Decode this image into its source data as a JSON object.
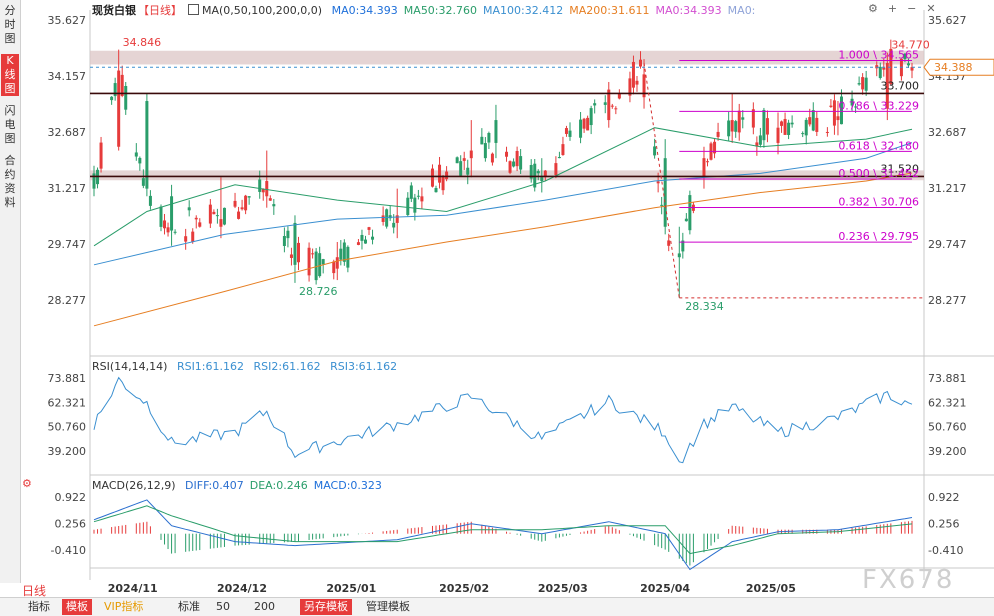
{
  "sidebar": {
    "tabs": [
      {
        "label": "分时图",
        "active": false
      },
      {
        "label": "K线图",
        "active": true
      },
      {
        "label": "闪电图",
        "active": false
      },
      {
        "label": "合约资料",
        "active": false
      }
    ]
  },
  "header": {
    "instrument": "现货白银",
    "period_tag": "【日线】",
    "ma_label": "MA(0,50,100,200,0,0)",
    "ma_values": [
      {
        "text": "MA0:34.393",
        "color": "#1e6fd9"
      },
      {
        "text": "MA50:32.760",
        "color": "#2a9d6a"
      },
      {
        "text": "MA100:32.412",
        "color": "#3a8fd0"
      },
      {
        "text": "MA200:31.611",
        "color": "#e67e22"
      },
      {
        "text": "MA0:34.393",
        "color": "#d24fd0"
      },
      {
        "text": "MA0:",
        "color": "#8fa3d8"
      }
    ],
    "icons": [
      "gear-icon",
      "plus-icon",
      "minus-icon",
      "close-icon"
    ],
    "icon_glyphs": [
      "⚙",
      "+",
      "−",
      "✕"
    ]
  },
  "price_axis": {
    "ticks": [
      "35.627",
      "34.157",
      "32.687",
      "31.217",
      "29.747",
      "28.277"
    ],
    "current_price": "34.388"
  },
  "rsi": {
    "label": "RSI(14,14,14)",
    "values": [
      "RSI1:61.162",
      "RSI2:61.162",
      "RSI3:61.162"
    ],
    "ticks": [
      "73.881",
      "62.321",
      "50.760",
      "39.200"
    ]
  },
  "macd": {
    "label": "MACD(26,12,9)",
    "values": [
      {
        "text": "DIFF:0.407",
        "color": "#2b6fcf"
      },
      {
        "text": "DEA:0.246",
        "color": "#2a9d6a"
      },
      {
        "text": "MACD:0.323",
        "color": "#1e6fd9"
      }
    ],
    "ticks": [
      "0.922",
      "0.256",
      "-0.410"
    ]
  },
  "date_labels": [
    "2024/11",
    "2024/12",
    "2025/01",
    "2025/02",
    "2025/03",
    "2025/04",
    "2025/05"
  ],
  "annotations": {
    "high_left": "34.846",
    "low_left": "28.726",
    "high_right": "34.770",
    "low_right": "28.334",
    "resistance": "33.700",
    "support": "31.520"
  },
  "fibonacci": [
    {
      "text": "1.000 \\ 34.565",
      "price": 34.565
    },
    {
      "text": "0.786 \\ 33.229",
      "price": 33.229
    },
    {
      "text": "0.618 \\ 32.180",
      "price": 32.18
    },
    {
      "text": "0.500 \\ 31.452",
      "price": 31.452
    },
    {
      "text": "0.382 \\ 30.706",
      "price": 30.706
    },
    {
      "text": "0.236 \\ 29.795",
      "price": 29.795
    }
  ],
  "bottom_bar": {
    "period": "日线",
    "buttons": [
      {
        "label": "指标",
        "style": "normal"
      },
      {
        "label": "模板",
        "style": "red"
      },
      {
        "label": "VIP指标",
        "style": "vip"
      },
      {
        "label": "标准",
        "style": "normal"
      },
      {
        "label": "50",
        "style": "normal"
      },
      {
        "label": "200",
        "style": "normal"
      },
      {
        "label": "另存模板",
        "style": "red"
      },
      {
        "label": "管理模板",
        "style": "normal"
      }
    ]
  },
  "watermark": "FX678",
  "colors": {
    "up": "#e63b3b",
    "down": "#2a9d6a",
    "ma0": "#1e6fd9",
    "ma50": "#2a9d6a",
    "ma100": "#3a8fd0",
    "ma200": "#e67e22",
    "fib": "#cc00cc"
  },
  "chart_data": {
    "type": "candlestick",
    "title": "现货白银 日线",
    "ylim": [
      28.277,
      35.627
    ],
    "x_range": [
      "2024-10-23",
      "2025-06-12"
    ],
    "month_ticks": [
      "2024-11-01",
      "2024-12-02",
      "2025-01-02",
      "2025-02-03",
      "2025-03-03",
      "2025-04-01",
      "2025-05-01"
    ],
    "ohlc_keypoints": [
      [
        "2024-10-23",
        31.6,
        31.8,
        31.0,
        31.2
      ],
      [
        "2024-10-30",
        32.3,
        34.85,
        32.2,
        34.3
      ],
      [
        "2024-11-07",
        33.5,
        33.7,
        31.0,
        31.2
      ],
      [
        "2024-11-14",
        31.0,
        31.3,
        29.7,
        30.1
      ],
      [
        "2024-11-28",
        30.2,
        31.5,
        29.9,
        30.4
      ],
      [
        "2024-12-11",
        31.0,
        32.2,
        30.7,
        31.4
      ],
      [
        "2024-12-19",
        30.3,
        30.5,
        28.726,
        29.2
      ],
      [
        "2024-12-31",
        29.1,
        29.8,
        28.8,
        29.4
      ],
      [
        "2025-01-17",
        30.3,
        31.2,
        29.9,
        30.5
      ],
      [
        "2025-02-07",
        32.0,
        33.0,
        31.5,
        32.2
      ],
      [
        "2025-02-14",
        33.0,
        33.4,
        32.0,
        32.4
      ],
      [
        "2025-02-27",
        31.5,
        32.0,
        31.1,
        31.4
      ],
      [
        "2025-03-18",
        33.0,
        34.0,
        32.8,
        33.8
      ],
      [
        "2025-03-28",
        33.6,
        34.6,
        33.3,
        34.2
      ],
      [
        "2025-04-03",
        32.0,
        32.5,
        30.0,
        30.2
      ],
      [
        "2025-04-07",
        29.5,
        30.2,
        28.334,
        29.4
      ],
      [
        "2025-04-14",
        31.5,
        32.3,
        31.2,
        32.0
      ],
      [
        "2025-04-22",
        32.7,
        33.7,
        32.4,
        33.0
      ],
      [
        "2025-05-05",
        32.4,
        33.2,
        32.1,
        32.8
      ],
      [
        "2025-05-22",
        33.0,
        33.5,
        32.6,
        33.1
      ],
      [
        "2025-06-05",
        33.3,
        34.77,
        33.0,
        34.5
      ],
      [
        "2025-06-12",
        34.3,
        34.5,
        34.1,
        34.39
      ]
    ],
    "moving_averages": [
      {
        "name": "MA50",
        "points": [
          [
            "2024-10-23",
            29.7
          ],
          [
            "2024-11-07",
            30.6
          ],
          [
            "2024-12-02",
            31.3
          ],
          [
            "2024-12-31",
            30.9
          ],
          [
            "2025-01-31",
            30.6
          ],
          [
            "2025-02-28",
            31.4
          ],
          [
            "2025-03-31",
            32.8
          ],
          [
            "2025-04-30",
            32.3
          ],
          [
            "2025-05-30",
            32.5
          ],
          [
            "2025-06-12",
            32.76
          ]
        ]
      },
      {
        "name": "MA100",
        "points": [
          [
            "2024-10-23",
            29.2
          ],
          [
            "2024-11-29",
            30.0
          ],
          [
            "2024-12-31",
            30.4
          ],
          [
            "2025-01-31",
            30.5
          ],
          [
            "2025-02-28",
            30.9
          ],
          [
            "2025-03-31",
            31.4
          ],
          [
            "2025-04-30",
            31.6
          ],
          [
            "2025-05-30",
            32.0
          ],
          [
            "2025-06-12",
            32.41
          ]
        ]
      },
      {
        "name": "MA200",
        "points": [
          [
            "2024-10-23",
            27.6
          ],
          [
            "2024-11-29",
            28.5
          ],
          [
            "2024-12-31",
            29.3
          ],
          [
            "2025-01-31",
            29.8
          ],
          [
            "2025-02-28",
            30.2
          ],
          [
            "2025-03-31",
            30.7
          ],
          [
            "2025-04-30",
            31.1
          ],
          [
            "2025-05-30",
            31.4
          ],
          [
            "2025-06-12",
            31.61
          ]
        ]
      }
    ],
    "horizontal_levels": [
      {
        "name": "resistance",
        "price": 33.7
      },
      {
        "name": "support",
        "price": 31.52
      },
      {
        "name": "last-price",
        "price": 34.388
      }
    ],
    "zones": [
      {
        "name": "upper-zone",
        "from": 34.46,
        "to": 34.82
      },
      {
        "name": "lower-zone",
        "from": 31.42,
        "to": 31.68
      }
    ],
    "rsi_points": [
      [
        "2024-10-23",
        52
      ],
      [
        "2024-10-30",
        73
      ],
      [
        "2024-11-07",
        62
      ],
      [
        "2024-11-14",
        43
      ],
      [
        "2024-12-02",
        48
      ],
      [
        "2024-12-11",
        58
      ],
      [
        "2024-12-19",
        38
      ],
      [
        "2025-01-17",
        52
      ],
      [
        "2025-02-07",
        65
      ],
      [
        "2025-02-27",
        45
      ],
      [
        "2025-03-18",
        63
      ],
      [
        "2025-04-03",
        48
      ],
      [
        "2025-04-07",
        34
      ],
      [
        "2025-04-14",
        52
      ],
      [
        "2025-04-22",
        60
      ],
      [
        "2025-05-05",
        48
      ],
      [
        "2025-05-22",
        55
      ],
      [
        "2025-06-05",
        66
      ],
      [
        "2025-06-12",
        61.162
      ]
    ],
    "macd_points": [
      [
        "2024-10-23",
        0.35,
        0.3
      ],
      [
        "2024-11-07",
        0.85,
        0.7
      ],
      [
        "2024-11-14",
        0.2,
        0.45
      ],
      [
        "2024-12-02",
        -0.2,
        -0.05
      ],
      [
        "2024-12-19",
        -0.3,
        -0.2
      ],
      [
        "2025-01-17",
        -0.15,
        -0.2
      ],
      [
        "2025-02-07",
        0.25,
        0.1
      ],
      [
        "2025-02-27",
        0.0,
        0.1
      ],
      [
        "2025-03-18",
        0.3,
        0.2
      ],
      [
        "2025-04-03",
        0.0,
        0.2
      ],
      [
        "2025-04-10",
        -0.9,
        -0.5
      ],
      [
        "2025-04-22",
        -0.2,
        -0.3
      ],
      [
        "2025-05-05",
        0.05,
        0.0
      ],
      [
        "2025-05-22",
        0.1,
        0.05
      ],
      [
        "2025-06-12",
        0.407,
        0.246
      ]
    ]
  }
}
